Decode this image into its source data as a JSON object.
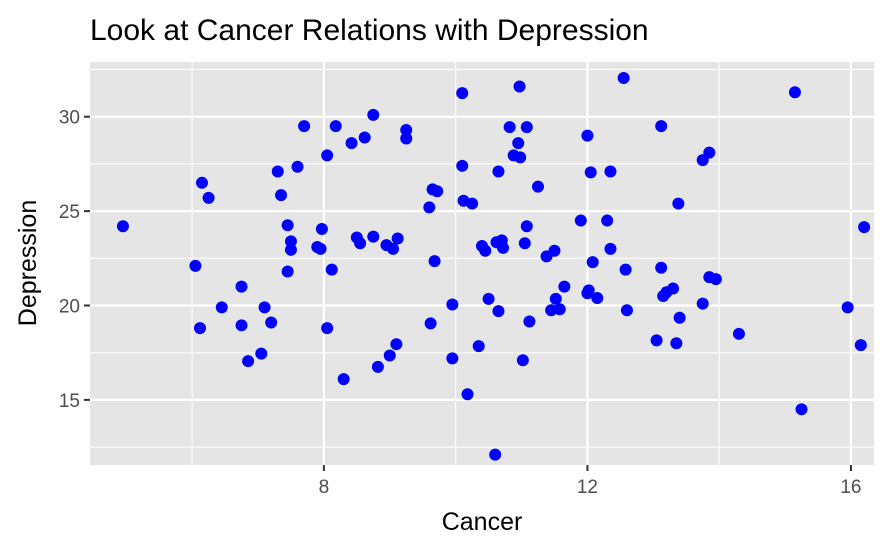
{
  "chart_data": {
    "type": "scatter",
    "title": "Look at Cancer Relations with Depression",
    "xlabel": "Cancer",
    "ylabel": "Depression",
    "xlim": [
      4.45,
      16.35
    ],
    "ylim": [
      11.55,
      32.9
    ],
    "x_ticks": [
      8,
      12,
      16
    ],
    "x_tick_labels": [
      "8",
      "12",
      "16"
    ],
    "x_minor_ticks": [
      6,
      10,
      14
    ],
    "y_ticks": [
      15,
      20,
      25,
      30
    ],
    "y_tick_labels": [
      "15",
      "20",
      "25",
      "30"
    ],
    "y_minor_ticks": [
      12.5,
      17.5,
      22.5,
      27.5,
      32.5
    ],
    "grid": true,
    "legend": "none",
    "point_color": "#0000ff",
    "panel_background": "#e5e5e5",
    "grid_color": "#ffffff",
    "points": [
      [
        4.95,
        24.2
      ],
      [
        6.05,
        22.1
      ],
      [
        6.12,
        18.8
      ],
      [
        6.15,
        26.5
      ],
      [
        6.25,
        25.7
      ],
      [
        6.45,
        19.9
      ],
      [
        6.75,
        21.0
      ],
      [
        6.75,
        18.95
      ],
      [
        6.85,
        17.05
      ],
      [
        7.05,
        17.45
      ],
      [
        7.1,
        19.9
      ],
      [
        7.2,
        19.1
      ],
      [
        7.3,
        27.1
      ],
      [
        7.35,
        25.85
      ],
      [
        7.45,
        21.8
      ],
      [
        7.45,
        24.25
      ],
      [
        7.5,
        23.4
      ],
      [
        7.5,
        22.95
      ],
      [
        7.6,
        27.35
      ],
      [
        7.7,
        29.5
      ],
      [
        7.9,
        23.1
      ],
      [
        7.95,
        23.0
      ],
      [
        7.97,
        24.05
      ],
      [
        8.05,
        18.8
      ],
      [
        8.05,
        27.95
      ],
      [
        8.12,
        21.9
      ],
      [
        8.18,
        29.5
      ],
      [
        8.3,
        16.1
      ],
      [
        8.42,
        28.6
      ],
      [
        8.5,
        23.6
      ],
      [
        8.55,
        23.3
      ],
      [
        8.62,
        28.9
      ],
      [
        8.75,
        30.1
      ],
      [
        8.75,
        23.65
      ],
      [
        8.82,
        16.75
      ],
      [
        8.95,
        23.2
      ],
      [
        9.0,
        17.35
      ],
      [
        9.05,
        23.0
      ],
      [
        9.1,
        17.95
      ],
      [
        9.12,
        23.55
      ],
      [
        9.25,
        29.3
      ],
      [
        9.25,
        28.85
      ],
      [
        9.6,
        25.2
      ],
      [
        9.62,
        19.05
      ],
      [
        9.65,
        26.15
      ],
      [
        9.68,
        22.35
      ],
      [
        9.72,
        26.05
      ],
      [
        9.95,
        20.05
      ],
      [
        9.95,
        17.2
      ],
      [
        10.1,
        31.25
      ],
      [
        10.1,
        27.4
      ],
      [
        10.12,
        25.55
      ],
      [
        10.18,
        15.3
      ],
      [
        10.25,
        25.4
      ],
      [
        10.35,
        17.85
      ],
      [
        10.4,
        23.15
      ],
      [
        10.45,
        22.9
      ],
      [
        10.5,
        20.35
      ],
      [
        10.6,
        12.1
      ],
      [
        10.62,
        23.35
      ],
      [
        10.65,
        19.7
      ],
      [
        10.65,
        27.1
      ],
      [
        10.7,
        23.45
      ],
      [
        10.72,
        23.05
      ],
      [
        10.82,
        29.45
      ],
      [
        10.88,
        27.95
      ],
      [
        10.95,
        28.6
      ],
      [
        10.97,
        31.6
      ],
      [
        10.98,
        27.85
      ],
      [
        11.02,
        17.1
      ],
      [
        11.05,
        23.3
      ],
      [
        11.08,
        29.45
      ],
      [
        11.08,
        24.2
      ],
      [
        11.12,
        19.15
      ],
      [
        11.25,
        26.3
      ],
      [
        11.38,
        22.6
      ],
      [
        11.45,
        19.75
      ],
      [
        11.5,
        22.9
      ],
      [
        11.52,
        20.35
      ],
      [
        11.58,
        19.8
      ],
      [
        11.65,
        21.0
      ],
      [
        11.9,
        24.5
      ],
      [
        12.0,
        29.0
      ],
      [
        12.0,
        20.65
      ],
      [
        12.02,
        20.8
      ],
      [
        12.05,
        27.05
      ],
      [
        12.08,
        22.3
      ],
      [
        12.15,
        20.4
      ],
      [
        12.3,
        24.5
      ],
      [
        12.35,
        27.1
      ],
      [
        12.35,
        23.0
      ],
      [
        12.55,
        32.05
      ],
      [
        12.58,
        21.9
      ],
      [
        12.6,
        19.75
      ],
      [
        13.05,
        18.15
      ],
      [
        13.12,
        29.5
      ],
      [
        13.12,
        22.0
      ],
      [
        13.15,
        20.5
      ],
      [
        13.2,
        20.7
      ],
      [
        13.3,
        20.9
      ],
      [
        13.35,
        18.0
      ],
      [
        13.38,
        25.4
      ],
      [
        13.4,
        19.35
      ],
      [
        13.75,
        20.1
      ],
      [
        13.75,
        27.7
      ],
      [
        13.85,
        28.1
      ],
      [
        13.85,
        21.5
      ],
      [
        13.95,
        21.4
      ],
      [
        14.3,
        18.5
      ],
      [
        15.15,
        31.3
      ],
      [
        15.25,
        14.5
      ],
      [
        15.95,
        19.9
      ],
      [
        16.15,
        17.9
      ],
      [
        16.2,
        24.15
      ]
    ]
  }
}
